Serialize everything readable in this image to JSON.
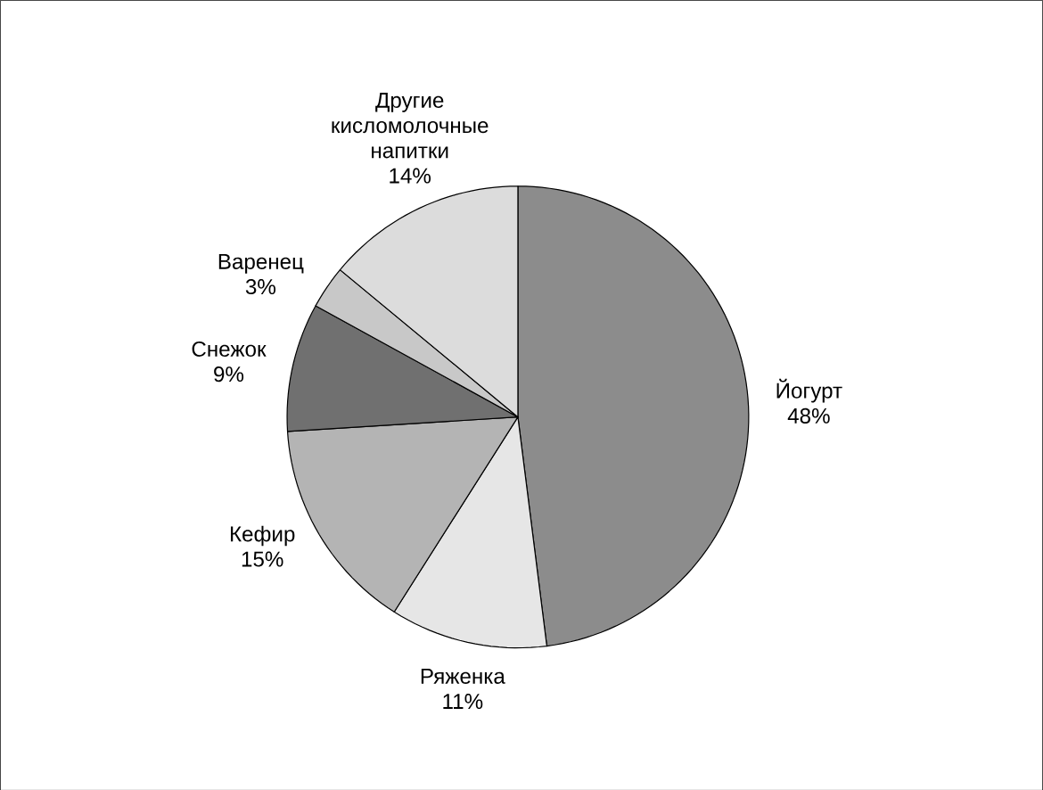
{
  "chart_data": {
    "type": "pie",
    "categories": [
      "Йогурт",
      "Ряженка",
      "Кефир",
      "Снежок",
      "Варенец",
      "Другие кисломолочные напитки"
    ],
    "values": [
      48,
      11,
      15,
      9,
      3,
      14
    ],
    "value_labels": [
      "48%",
      "11%",
      "15%",
      "9%",
      "3%",
      "14%"
    ],
    "colors": [
      "#8c8c8c",
      "#e6e6e6",
      "#b4b4b4",
      "#707070",
      "#c8c8c8",
      "#dcdcdc"
    ]
  }
}
